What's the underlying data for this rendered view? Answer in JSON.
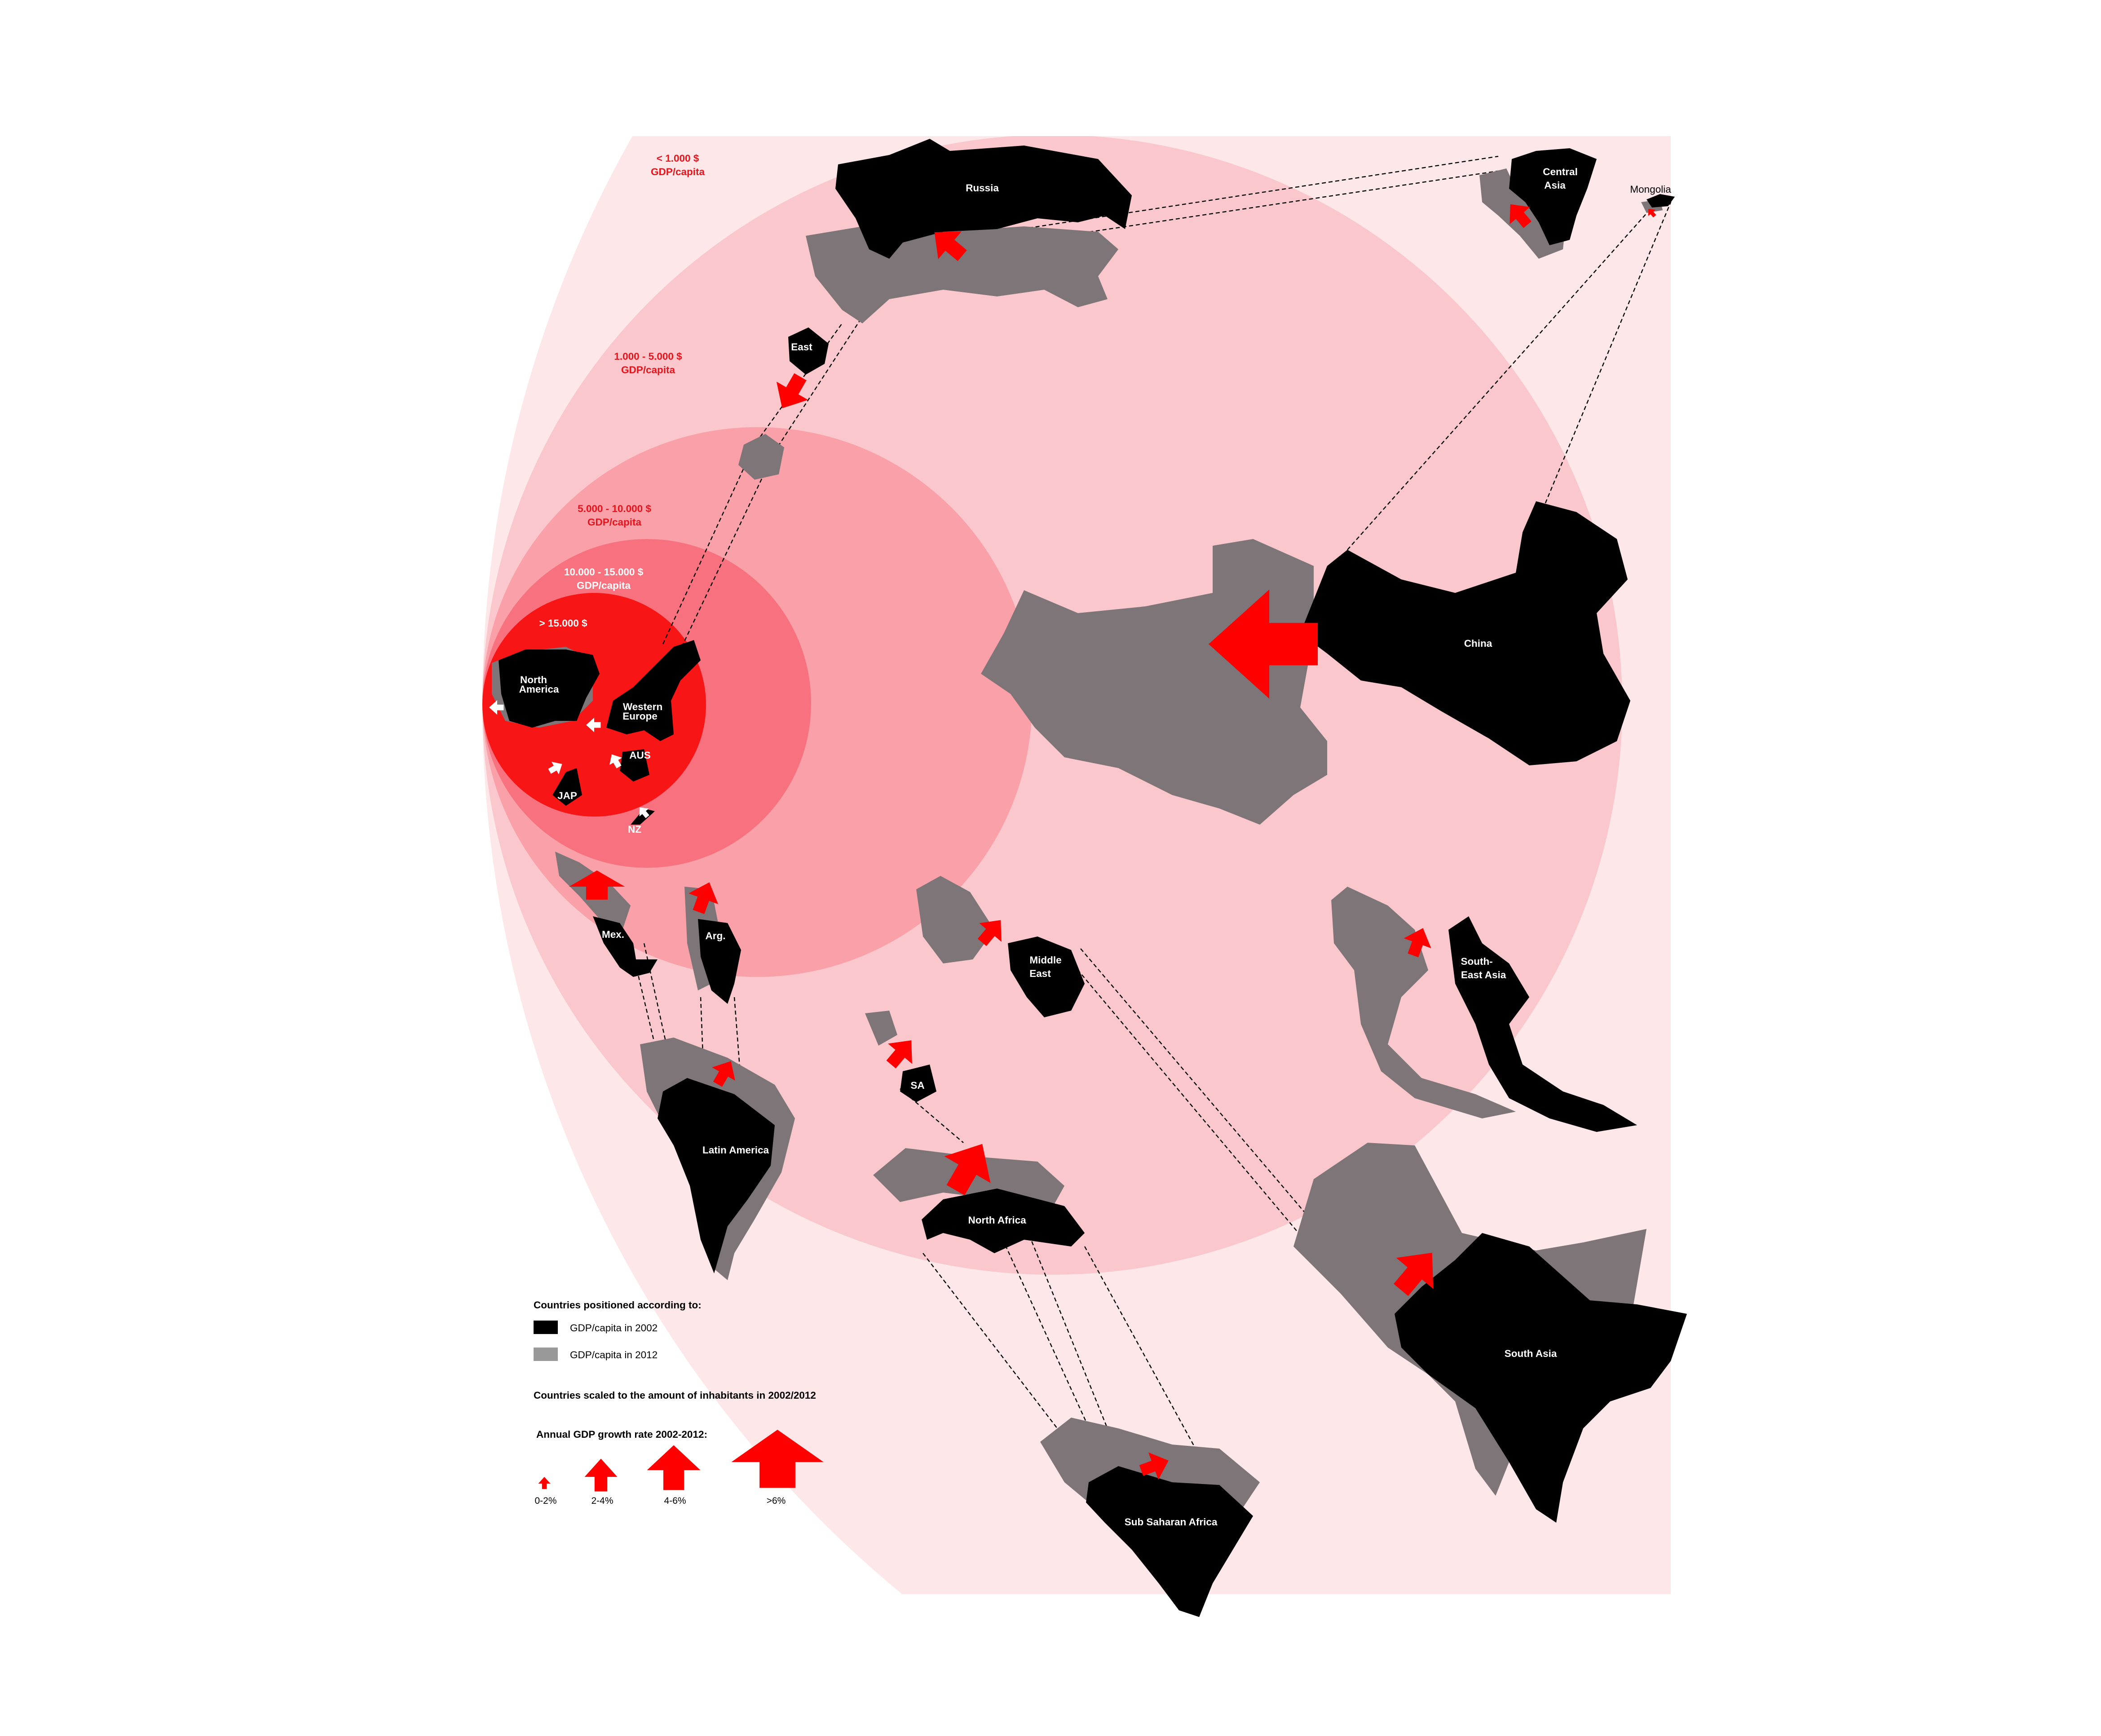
{
  "colors": {
    "band_lt1000": "#fde7e8",
    "band_1000_5000": "#fac8cc",
    "band_5000_10000": "#f9a0a8",
    "band_10000_15000": "#f7727e",
    "band_gt15000": "#f71515",
    "gdp_2002": "#000000",
    "gdp_2012": "#999999",
    "growth_arrow": "#ff0000"
  },
  "bands": [
    {
      "lines": [
        "< 1.000 $",
        "GDP/capita"
      ]
    },
    {
      "lines": [
        "1.000 - 5.000 $",
        "GDP/capita"
      ]
    },
    {
      "lines": [
        "5.000 - 10.000 $",
        "GDP/capita"
      ]
    },
    {
      "lines": [
        "10.000 - 15.000 $",
        "GDP/capita"
      ]
    },
    {
      "lines": [
        ">  15.000 $"
      ]
    }
  ],
  "regions": {
    "russia": "Russia",
    "east": "East",
    "central_asia": [
      "Central",
      "Asia"
    ],
    "mongolia": "Mongolia",
    "china": "China",
    "north_america": [
      "North",
      "America"
    ],
    "western_europe": [
      "Western",
      "Europe"
    ],
    "aus": "AUS",
    "jap": "JAP",
    "nz": "NZ",
    "mexico": "Mex.",
    "argentina": "Arg.",
    "latin_america": "Latin America",
    "middle_east": [
      "Middle",
      "East"
    ],
    "sa": "SA",
    "north_africa": "North Africa",
    "south_east_asia": [
      "South-",
      "East Asia"
    ],
    "south_asia": "South Asia",
    "sub_saharan_africa": "Sub Saharan Africa"
  },
  "legend": {
    "positioned_title": "Countries positioned according to:",
    "items": [
      {
        "label": "GDP/capita in 2002",
        "color": "#000000"
      },
      {
        "label": "GDP/capita in 2012",
        "color": "#999999"
      }
    ],
    "scaled_note": "Countries scaled to the amount of inhabitants in 2002/2012",
    "growth_title": "Annual GDP growth rate 2002-2012:",
    "growth_classes": [
      "0-2%",
      "2-4%",
      "4-6%",
      ">6%"
    ]
  }
}
